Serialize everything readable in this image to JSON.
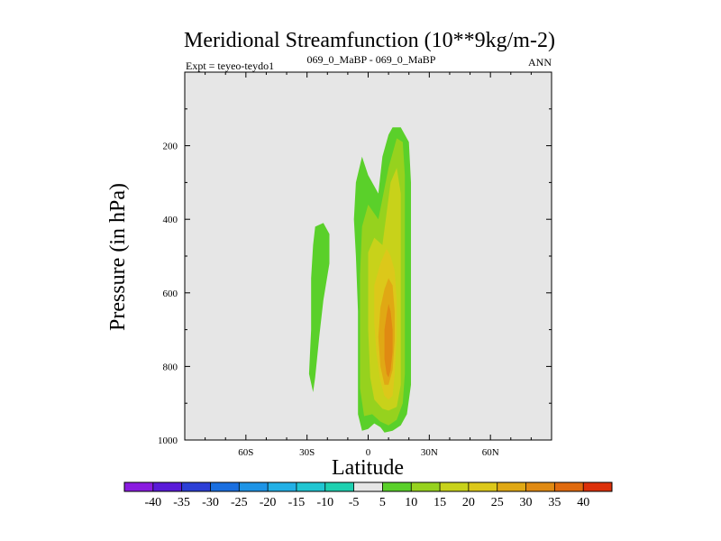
{
  "chart_data": {
    "type": "contour",
    "title": "Meridional Streamfunction (10**9kg/m-2)",
    "subtitle_left": "Expt = teyeo-teydo1",
    "subtitle_center": "069_0_MaBP - 069_0_MaBP",
    "subtitle_right": "ANN",
    "xlabel": "Latitude",
    "ylabel": "Pressure (in hPa)",
    "xlim": [
      -90,
      90
    ],
    "ylim": [
      1000,
      0
    ],
    "x_ticks": [
      {
        "value": -60,
        "label": "60S"
      },
      {
        "value": -30,
        "label": "30S"
      },
      {
        "value": 0,
        "label": "0"
      },
      {
        "value": 30,
        "label": "30N"
      },
      {
        "value": 60,
        "label": "60N"
      }
    ],
    "y_ticks": [
      {
        "value": 200,
        "label": "200"
      },
      {
        "value": 400,
        "label": "400"
      },
      {
        "value": 600,
        "label": "600"
      },
      {
        "value": 800,
        "label": "800"
      },
      {
        "value": 1000,
        "label": "1000"
      }
    ],
    "background_color": "#e6e6e6",
    "contour_levels": [
      "-40",
      "-35",
      "-30",
      "-25",
      "-20",
      "-15",
      "-10",
      "-5",
      "5",
      "10",
      "15",
      "20",
      "25",
      "30",
      "35",
      "40"
    ],
    "colorbar_colors": [
      "#8a1be0",
      "#5a1ad8",
      "#2c3fd6",
      "#1a6fe0",
      "#1e94e6",
      "#22b0e6",
      "#20c6d2",
      "#1ed0b0",
      "#e6e6e6",
      "#5ad02a",
      "#96d21e",
      "#c8d21a",
      "#dcc81a",
      "#e0a814",
      "#e08a12",
      "#e06a0e",
      "#dc300a"
    ],
    "regions": [
      {
        "name": "shallow-south-cell",
        "level": 5,
        "color": "#5ad02a",
        "points": [
          [
            -26,
            420
          ],
          [
            -22,
            410
          ],
          [
            -19,
            440
          ],
          [
            -19,
            520
          ],
          [
            -22,
            620
          ],
          [
            -24,
            720
          ],
          [
            -26,
            830
          ],
          [
            -27,
            870
          ],
          [
            -29,
            820
          ],
          [
            -28,
            700
          ],
          [
            -28,
            560
          ],
          [
            -27,
            470
          ]
        ]
      },
      {
        "name": "main-cell-level-5",
        "level": 5,
        "color": "#5ad02a",
        "points": [
          [
            -3,
            230
          ],
          [
            0,
            280
          ],
          [
            5,
            330
          ],
          [
            7,
            230
          ],
          [
            10,
            170
          ],
          [
            12,
            150
          ],
          [
            16,
            150
          ],
          [
            20,
            190
          ],
          [
            21,
            300
          ],
          [
            21,
            500
          ],
          [
            21,
            700
          ],
          [
            21,
            850
          ],
          [
            19,
            930
          ],
          [
            16,
            960
          ],
          [
            12,
            975
          ],
          [
            8,
            980
          ],
          [
            6,
            965
          ],
          [
            3,
            955
          ],
          [
            0,
            970
          ],
          [
            -3,
            975
          ],
          [
            -5,
            930
          ],
          [
            -5,
            800
          ],
          [
            -5,
            650
          ],
          [
            -6,
            500
          ],
          [
            -7,
            400
          ],
          [
            -6,
            300
          ]
        ]
      },
      {
        "name": "main-cell-level-10",
        "level": 10,
        "color": "#96d21e",
        "points": [
          [
            -3,
            420
          ],
          [
            0,
            360
          ],
          [
            5,
            400
          ],
          [
            10,
            260
          ],
          [
            14,
            180
          ],
          [
            17,
            190
          ],
          [
            18,
            280
          ],
          [
            18,
            450
          ],
          [
            18,
            650
          ],
          [
            18,
            820
          ],
          [
            17,
            900
          ],
          [
            14,
            945
          ],
          [
            10,
            960
          ],
          [
            6,
            950
          ],
          [
            2,
            930
          ],
          [
            -2,
            935
          ],
          [
            -4,
            860
          ],
          [
            -4,
            700
          ],
          [
            -4,
            550
          ]
        ]
      },
      {
        "name": "main-cell-level-15",
        "level": 15,
        "color": "#c8d21a",
        "points": [
          [
            0,
            490
          ],
          [
            3,
            450
          ],
          [
            7,
            470
          ],
          [
            11,
            300
          ],
          [
            14,
            260
          ],
          [
            16,
            330
          ],
          [
            16,
            500
          ],
          [
            16,
            700
          ],
          [
            16,
            850
          ],
          [
            14,
            910
          ],
          [
            10,
            920
          ],
          [
            7,
            915
          ],
          [
            3,
            890
          ],
          [
            1,
            830
          ],
          [
            0,
            700
          ]
        ]
      },
      {
        "name": "main-cell-level-20",
        "level": 20,
        "color": "#dcc81a",
        "points": [
          [
            3,
            580
          ],
          [
            6,
            520
          ],
          [
            9,
            480
          ],
          [
            11,
            500
          ],
          [
            13,
            540
          ],
          [
            14,
            620
          ],
          [
            14,
            720
          ],
          [
            13,
            820
          ],
          [
            12,
            880
          ],
          [
            10,
            890
          ],
          [
            8,
            880
          ],
          [
            6,
            840
          ],
          [
            4,
            760
          ],
          [
            3,
            680
          ]
        ]
      },
      {
        "name": "main-cell-level-25",
        "level": 25,
        "color": "#e0a814",
        "points": [
          [
            6,
            640
          ],
          [
            8,
            590
          ],
          [
            10,
            560
          ],
          [
            12,
            580
          ],
          [
            13,
            650
          ],
          [
            13,
            730
          ],
          [
            12,
            810
          ],
          [
            10,
            850
          ],
          [
            8,
            850
          ],
          [
            6,
            800
          ],
          [
            5,
            720
          ]
        ]
      },
      {
        "name": "main-cell-level-30",
        "level": 30,
        "color": "#e08a12",
        "points": [
          [
            8,
            700
          ],
          [
            9,
            660
          ],
          [
            10,
            630
          ],
          [
            11,
            650
          ],
          [
            12,
            700
          ],
          [
            12,
            760
          ],
          [
            11,
            810
          ],
          [
            10,
            830
          ],
          [
            9,
            820
          ],
          [
            8,
            780
          ]
        ]
      }
    ]
  }
}
